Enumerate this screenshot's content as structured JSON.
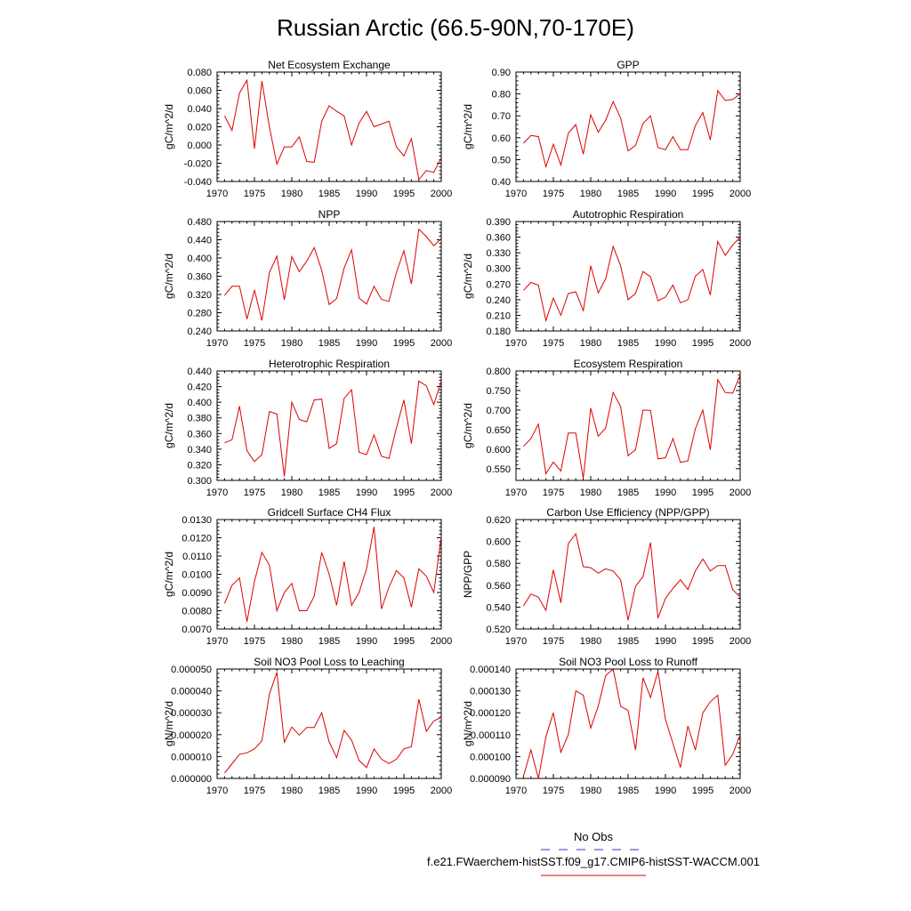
{
  "figure": {
    "title": "Russian Arctic (66.5-90N,70-170E)"
  },
  "legend": {
    "items": [
      {
        "label": "No Obs",
        "color": "#3333cc",
        "style": "dashed"
      },
      {
        "label": "f.e21.FWaerchem-histSST.f09_g17.CMIP6-histSST-WACCM.001",
        "color": "#dd0000",
        "style": "solid"
      }
    ]
  },
  "chart_data": [
    {
      "type": "line",
      "title": "Net Ecosystem Exchange",
      "ylabel": "gC/m^2/d",
      "xlim": [
        1970,
        2000
      ],
      "xticks": [
        "1970",
        "1975",
        "1980",
        "1985",
        "1990",
        "1995",
        "2000"
      ],
      "ylim": [
        -0.04,
        0.08
      ],
      "yticks": [
        "0.080",
        "0.060",
        "0.040",
        "0.020",
        "0.000",
        "-0.020",
        "-0.040"
      ],
      "ytick_values": [
        0.08,
        0.06,
        0.04,
        0.02,
        0.0,
        -0.02,
        -0.04
      ],
      "x": [
        1971,
        1972,
        1973,
        1974,
        1975,
        1976,
        1977,
        1978,
        1979,
        1980,
        1981,
        1982,
        1983,
        1984,
        1985,
        1986,
        1987,
        1988,
        1989,
        1990,
        1991,
        1992,
        1993,
        1994,
        1995,
        1996,
        1997,
        1998,
        1999,
        2000
      ],
      "series": [
        {
          "color": "#dd0000",
          "values": [
            0.032,
            0.016,
            0.057,
            0.071,
            -0.004,
            0.07,
            0.02,
            -0.021,
            -0.002,
            -0.002,
            0.009,
            -0.018,
            -0.019,
            0.026,
            0.043,
            0.037,
            0.032,
            0.0,
            0.024,
            0.037,
            0.02,
            0.023,
            0.026,
            -0.002,
            -0.012,
            0.007,
            -0.038,
            -0.028,
            -0.03,
            -0.014
          ]
        }
      ]
    },
    {
      "type": "line",
      "title": "GPP",
      "ylabel": "gC/m^2/d",
      "xlim": [
        1970,
        2000
      ],
      "xticks": [
        "1970",
        "1975",
        "1980",
        "1985",
        "1990",
        "1995",
        "2000"
      ],
      "ylim": [
        0.4,
        0.9
      ],
      "yticks": [
        "0.90",
        "0.80",
        "0.70",
        "0.60",
        "0.50",
        "0.40"
      ],
      "ytick_values": [
        0.9,
        0.8,
        0.7,
        0.6,
        0.5,
        0.4
      ],
      "x": [
        1971,
        1972,
        1973,
        1974,
        1975,
        1976,
        1977,
        1978,
        1979,
        1980,
        1981,
        1982,
        1983,
        1984,
        1985,
        1986,
        1987,
        1988,
        1989,
        1990,
        1991,
        1992,
        1993,
        1994,
        1995,
        1996,
        1997,
        1998,
        1999,
        2000
      ],
      "series": [
        {
          "color": "#dd0000",
          "values": [
            0.575,
            0.61,
            0.605,
            0.467,
            0.57,
            0.475,
            0.62,
            0.66,
            0.525,
            0.705,
            0.625,
            0.68,
            0.765,
            0.69,
            0.54,
            0.565,
            0.665,
            0.7,
            0.555,
            0.545,
            0.605,
            0.545,
            0.545,
            0.655,
            0.715,
            0.59,
            0.815,
            0.77,
            0.775,
            0.8
          ]
        }
      ]
    },
    {
      "type": "line",
      "title": "NPP",
      "ylabel": "gC/m^2/d",
      "xlim": [
        1970,
        2000
      ],
      "xticks": [
        "1970",
        "1975",
        "1980",
        "1985",
        "1990",
        "1995",
        "2000"
      ],
      "ylim": [
        0.24,
        0.48
      ],
      "yticks": [
        "0.480",
        "0.440",
        "0.400",
        "0.360",
        "0.320",
        "0.280",
        "0.240"
      ],
      "ytick_values": [
        0.48,
        0.44,
        0.4,
        0.36,
        0.32,
        0.28,
        0.24
      ],
      "x": [
        1971,
        1972,
        1973,
        1974,
        1975,
        1976,
        1977,
        1978,
        1979,
        1980,
        1981,
        1982,
        1983,
        1984,
        1985,
        1986,
        1987,
        1988,
        1989,
        1990,
        1991,
        1992,
        1993,
        1994,
        1995,
        1996,
        1997,
        1998,
        1999,
        2000
      ],
      "series": [
        {
          "color": "#dd0000",
          "values": [
            0.318,
            0.338,
            0.338,
            0.266,
            0.33,
            0.263,
            0.368,
            0.404,
            0.308,
            0.403,
            0.37,
            0.393,
            0.423,
            0.373,
            0.298,
            0.311,
            0.378,
            0.418,
            0.312,
            0.299,
            0.338,
            0.309,
            0.305,
            0.368,
            0.416,
            0.343,
            0.463,
            0.447,
            0.427,
            0.443
          ]
        }
      ]
    },
    {
      "type": "line",
      "title": "Autotrophic Respiration",
      "ylabel": "gC/m^2/d",
      "xlim": [
        1970,
        2000
      ],
      "xticks": [
        "1970",
        "1975",
        "1980",
        "1985",
        "1990",
        "1995",
        "2000"
      ],
      "ylim": [
        0.18,
        0.39
      ],
      "yticks": [
        "0.390",
        "0.360",
        "0.330",
        "0.300",
        "0.270",
        "0.240",
        "0.210",
        "0.180"
      ],
      "ytick_values": [
        0.39,
        0.36,
        0.33,
        0.3,
        0.27,
        0.24,
        0.21,
        0.18
      ],
      "x": [
        1971,
        1972,
        1973,
        1974,
        1975,
        1976,
        1977,
        1978,
        1979,
        1980,
        1981,
        1982,
        1983,
        1984,
        1985,
        1986,
        1987,
        1988,
        1989,
        1990,
        1991,
        1992,
        1993,
        1994,
        1995,
        1996,
        1997,
        1998,
        1999,
        2000
      ],
      "series": [
        {
          "color": "#dd0000",
          "values": [
            0.258,
            0.273,
            0.268,
            0.2,
            0.243,
            0.21,
            0.252,
            0.255,
            0.219,
            0.305,
            0.253,
            0.28,
            0.342,
            0.305,
            0.24,
            0.252,
            0.294,
            0.284,
            0.238,
            0.245,
            0.268,
            0.234,
            0.24,
            0.285,
            0.298,
            0.249,
            0.352,
            0.325,
            0.345,
            0.36
          ]
        }
      ]
    },
    {
      "type": "line",
      "title": "Heterotrophic Respiration",
      "ylabel": "gC/m^2/d",
      "xlim": [
        1970,
        2000
      ],
      "xticks": [
        "1970",
        "1975",
        "1980",
        "1985",
        "1990",
        "1995",
        "2000"
      ],
      "ylim": [
        0.3,
        0.44
      ],
      "yticks": [
        "0.440",
        "0.420",
        "0.400",
        "0.380",
        "0.360",
        "0.340",
        "0.320",
        "0.300"
      ],
      "ytick_values": [
        0.44,
        0.42,
        0.4,
        0.38,
        0.36,
        0.34,
        0.32,
        0.3
      ],
      "x": [
        1971,
        1972,
        1973,
        1974,
        1975,
        1976,
        1977,
        1978,
        1979,
        1980,
        1981,
        1982,
        1983,
        1984,
        1985,
        1986,
        1987,
        1988,
        1989,
        1990,
        1991,
        1992,
        1993,
        1994,
        1995,
        1996,
        1997,
        1998,
        1999,
        2000
      ],
      "series": [
        {
          "color": "#dd0000",
          "values": [
            0.348,
            0.352,
            0.395,
            0.338,
            0.324,
            0.333,
            0.388,
            0.385,
            0.305,
            0.4,
            0.378,
            0.375,
            0.403,
            0.404,
            0.341,
            0.347,
            0.405,
            0.416,
            0.336,
            0.333,
            0.358,
            0.331,
            0.328,
            0.367,
            0.403,
            0.347,
            0.427,
            0.421,
            0.397,
            0.427
          ]
        }
      ]
    },
    {
      "type": "line",
      "title": "Ecosystem Respiration",
      "ylabel": "gC/m^2/d",
      "xlim": [
        1970,
        2000
      ],
      "xticks": [
        "1970",
        "1975",
        "1980",
        "1985",
        "1990",
        "1995",
        "2000"
      ],
      "ylim": [
        0.52,
        0.8
      ],
      "yticks": [
        "0.800",
        "0.750",
        "0.700",
        "0.650",
        "0.600",
        "0.550"
      ],
      "ytick_values": [
        0.8,
        0.75,
        0.7,
        0.65,
        0.6,
        0.55
      ],
      "x": [
        1971,
        1972,
        1973,
        1974,
        1975,
        1976,
        1977,
        1978,
        1979,
        1980,
        1981,
        1982,
        1983,
        1984,
        1985,
        1986,
        1987,
        1988,
        1989,
        1990,
        1991,
        1992,
        1993,
        1994,
        1995,
        1996,
        1997,
        1998,
        1999,
        2000
      ],
      "series": [
        {
          "color": "#dd0000",
          "values": [
            0.607,
            0.627,
            0.664,
            0.537,
            0.567,
            0.544,
            0.641,
            0.641,
            0.525,
            0.705,
            0.633,
            0.654,
            0.745,
            0.709,
            0.583,
            0.599,
            0.7,
            0.699,
            0.575,
            0.578,
            0.627,
            0.566,
            0.57,
            0.652,
            0.7,
            0.598,
            0.778,
            0.745,
            0.743,
            0.79
          ]
        }
      ]
    },
    {
      "type": "line",
      "title": "Gridcell Surface CH4 Flux",
      "ylabel": "gC/m^2/d",
      "xlim": [
        1970,
        2000
      ],
      "xticks": [
        "1970",
        "1975",
        "1980",
        "1985",
        "1990",
        "1995",
        "2000"
      ],
      "ylim": [
        0.007,
        0.013
      ],
      "yticks": [
        "0.0130",
        "0.0120",
        "0.0110",
        "0.0100",
        "0.0090",
        "0.0080",
        "0.0070"
      ],
      "ytick_values": [
        0.013,
        0.012,
        0.011,
        0.01,
        0.009,
        0.008,
        0.007
      ],
      "x": [
        1971,
        1972,
        1973,
        1974,
        1975,
        1976,
        1977,
        1978,
        1979,
        1980,
        1981,
        1982,
        1983,
        1984,
        1985,
        1986,
        1987,
        1988,
        1989,
        1990,
        1991,
        1992,
        1993,
        1994,
        1995,
        1996,
        1997,
        1998,
        1999,
        2000
      ],
      "series": [
        {
          "color": "#dd0000",
          "values": [
            0.0084,
            0.0094,
            0.0098,
            0.0074,
            0.0096,
            0.0112,
            0.0105,
            0.008,
            0.009,
            0.0095,
            0.008,
            0.008,
            0.0088,
            0.0112,
            0.01,
            0.0083,
            0.0107,
            0.0083,
            0.009,
            0.0103,
            0.0126,
            0.0081,
            0.0093,
            0.0102,
            0.0098,
            0.0082,
            0.0103,
            0.0099,
            0.009,
            0.0121
          ]
        }
      ]
    },
    {
      "type": "line",
      "title": "Carbon Use Efficiency (NPP/GPP)",
      "ylabel": "NPP/GPP",
      "xlim": [
        1970,
        2000
      ],
      "xticks": [
        "1970",
        "1975",
        "1980",
        "1985",
        "1990",
        "1995",
        "2000"
      ],
      "ylim": [
        0.52,
        0.62
      ],
      "yticks": [
        "0.620",
        "0.600",
        "0.580",
        "0.560",
        "0.540",
        "0.520"
      ],
      "ytick_values": [
        0.62,
        0.6,
        0.58,
        0.56,
        0.54,
        0.52
      ],
      "x": [
        1971,
        1972,
        1973,
        1974,
        1975,
        1976,
        1977,
        1978,
        1979,
        1980,
        1981,
        1982,
        1983,
        1984,
        1985,
        1986,
        1987,
        1988,
        1989,
        1990,
        1991,
        1992,
        1993,
        1994,
        1995,
        1996,
        1997,
        1998,
        1999,
        2000
      ],
      "series": [
        {
          "color": "#dd0000",
          "values": [
            0.541,
            0.552,
            0.549,
            0.537,
            0.574,
            0.544,
            0.598,
            0.607,
            0.577,
            0.576,
            0.571,
            0.575,
            0.573,
            0.565,
            0.528,
            0.559,
            0.568,
            0.599,
            0.53,
            0.548,
            0.557,
            0.565,
            0.556,
            0.573,
            0.584,
            0.573,
            0.578,
            0.578,
            0.556,
            0.549
          ]
        }
      ]
    },
    {
      "type": "line",
      "title": "Soil NO3 Pool Loss to Leaching",
      "ylabel": "gN/m^2/d",
      "xlim": [
        1970,
        2000
      ],
      "xticks": [
        "1970",
        "1975",
        "1980",
        "1985",
        "1990",
        "1995",
        "2000"
      ],
      "ylim": [
        0.0,
        5e-05
      ],
      "yticks": [
        "0.000050",
        "0.000040",
        "0.000030",
        "0.000020",
        "0.000010",
        "0.000000"
      ],
      "ytick_values": [
        5e-05,
        4e-05,
        3e-05,
        2e-05,
        1e-05,
        0.0
      ],
      "x": [
        1971,
        1972,
        1973,
        1974,
        1975,
        1976,
        1977,
        1978,
        1979,
        1980,
        1981,
        1982,
        1983,
        1984,
        1985,
        1986,
        1987,
        1988,
        1989,
        1990,
        1991,
        1992,
        1993,
        1994,
        1995,
        1996,
        1997,
        1998,
        1999,
        2000
      ],
      "series": [
        {
          "color": "#dd0000",
          "values": [
            2.5e-06,
            6.7e-06,
            1.1e-05,
            1.17e-05,
            1.35e-05,
            1.72e-05,
            3.85e-05,
            4.85e-05,
            1.65e-05,
            2.35e-05,
            1.98e-05,
            2.33e-05,
            2.33e-05,
            3e-05,
            1.67e-05,
            9.5e-06,
            2.2e-05,
            1.75e-05,
            8.2e-06,
            5e-06,
            1.35e-05,
            8.8e-06,
            6.8e-06,
            8.8e-06,
            1.35e-05,
            1.45e-05,
            3.62e-05,
            2.15e-05,
            2.62e-05,
            2.8e-05
          ]
        }
      ]
    },
    {
      "type": "line",
      "title": "Soil NO3 Pool Loss to Runoff",
      "ylabel": "gN/m^2/d",
      "xlim": [
        1970,
        2000
      ],
      "xticks": [
        "1970",
        "1975",
        "1980",
        "1985",
        "1990",
        "1995",
        "2000"
      ],
      "ylim": [
        9e-05,
        0.00014
      ],
      "yticks": [
        "0.000140",
        "0.000130",
        "0.000120",
        "0.000110",
        "0.000100",
        "0.000090"
      ],
      "ytick_values": [
        0.00014,
        0.00013,
        0.00012,
        0.00011,
        0.0001,
        9e-05
      ],
      "x": [
        1971,
        1972,
        1973,
        1974,
        1975,
        1976,
        1977,
        1978,
        1979,
        1980,
        1981,
        1982,
        1983,
        1984,
        1985,
        1986,
        1987,
        1988,
        1989,
        1990,
        1991,
        1992,
        1993,
        1994,
        1995,
        1996,
        1997,
        1998,
        1999,
        2000
      ],
      "series": [
        {
          "color": "#dd0000",
          "values": [
            9.1e-05,
            0.000103,
            9e-05,
            0.000109,
            0.00012,
            0.000102,
            0.00011,
            0.00013,
            0.000128,
            0.000113,
            0.000123,
            0.000137,
            0.00014,
            0.000123,
            0.000121,
            0.000103,
            0.000136,
            0.000127,
            0.000139,
            0.000117,
            0.000106,
            9.5e-05,
            0.000114,
            0.000103,
            0.00012,
            0.000125,
            0.000128,
            9.6e-05,
            0.000101,
            0.00011
          ]
        }
      ]
    }
  ]
}
